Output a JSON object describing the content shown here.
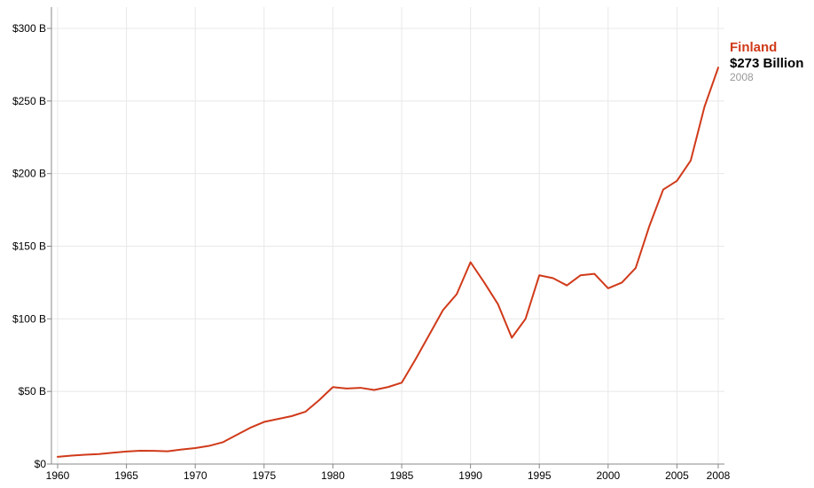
{
  "chart_data": {
    "type": "line",
    "title": "",
    "xlabel": "",
    "ylabel": "",
    "xlim": [
      1960,
      2008
    ],
    "ylim": [
      0,
      300
    ],
    "grid": true,
    "x_ticks": [
      1960,
      1965,
      1970,
      1975,
      1980,
      1985,
      1990,
      1995,
      2000,
      2005,
      2008
    ],
    "x_tick_labels": [
      "1960",
      "1965",
      "1970",
      "1975",
      "1980",
      "1985",
      "1990",
      "1995",
      "2000",
      "2005",
      "2008"
    ],
    "y_ticks": [
      0,
      50,
      100,
      150,
      200,
      250,
      300
    ],
    "y_tick_labels": [
      "$0",
      "$50 B",
      "$100 B",
      "$150 B",
      "$200 B",
      "$250 B",
      "$300 B"
    ],
    "x": [
      1960,
      1961,
      1962,
      1963,
      1964,
      1965,
      1966,
      1967,
      1968,
      1969,
      1970,
      1971,
      1972,
      1973,
      1974,
      1975,
      1976,
      1977,
      1978,
      1979,
      1980,
      1981,
      1982,
      1983,
      1984,
      1985,
      1986,
      1987,
      1988,
      1989,
      1990,
      1991,
      1992,
      1993,
      1994,
      1995,
      1996,
      1997,
      1998,
      1999,
      2000,
      2001,
      2002,
      2003,
      2004,
      2005,
      2006,
      2007,
      2008
    ],
    "series": [
      {
        "name": "Finland",
        "color": "#d03a1a",
        "values": [
          5,
          5.8,
          6.4,
          6.9,
          7.8,
          8.6,
          9.2,
          9.1,
          8.8,
          10,
          11,
          12.5,
          15,
          20,
          25,
          29,
          31,
          33,
          36,
          44,
          53,
          52,
          52.5,
          51,
          53,
          56,
          72,
          89,
          106,
          117,
          139,
          125,
          110,
          87,
          100,
          130,
          128,
          123,
          130,
          131,
          121,
          125,
          135,
          164,
          189,
          195,
          209,
          246,
          273
        ]
      }
    ],
    "annotation": {
      "name": "Finland",
      "value_text": "$273 Billion",
      "year_text": "2008"
    }
  },
  "colors": {
    "line": "#d03a1a",
    "grid": "#e8e8e8",
    "axis": "#888888",
    "annotation_year": "#999999"
  }
}
